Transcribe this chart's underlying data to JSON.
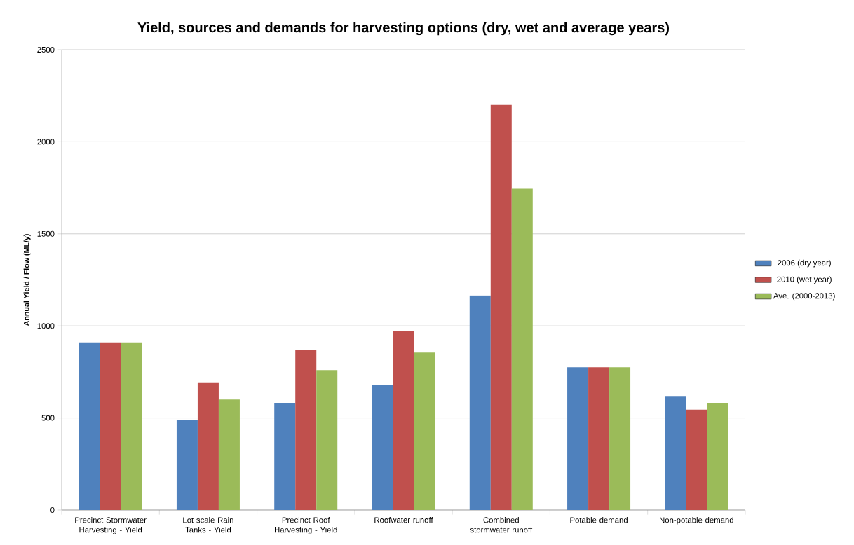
{
  "chart_data": {
    "type": "bar",
    "title": "Yield, sources and demands for harvesting options (dry, wet and average years)",
    "ylabel": "Annual Yield / Flow (ML/y)",
    "categories": [
      "Precinct Stormwater Harvesting - Yield",
      "Lot scale Rain Tanks - Yield",
      "Precinct Roof Harvesting - Yield",
      "Roofwater runoff",
      "Combined stormwater runoff",
      "Potable demand",
      "Non-potable demand"
    ],
    "series": [
      {
        "name": "2006 (dry year)",
        "color": "#4f81bd",
        "values": [
          910,
          490,
          580,
          680,
          1165,
          775,
          615
        ]
      },
      {
        "name": "2010 (wet year)",
        "color": "#c0504d",
        "values": [
          910,
          690,
          870,
          970,
          2200,
          775,
          545
        ]
      },
      {
        "name": "Ave. (2000-2013)",
        "color": "#9bbb59",
        "values": [
          910,
          600,
          760,
          855,
          1745,
          775,
          580
        ]
      }
    ],
    "ylim": [
      0,
      2500
    ],
    "yticks": [
      0,
      500,
      1000,
      1500,
      2000,
      2500
    ],
    "grid": "y",
    "legend": "right"
  }
}
